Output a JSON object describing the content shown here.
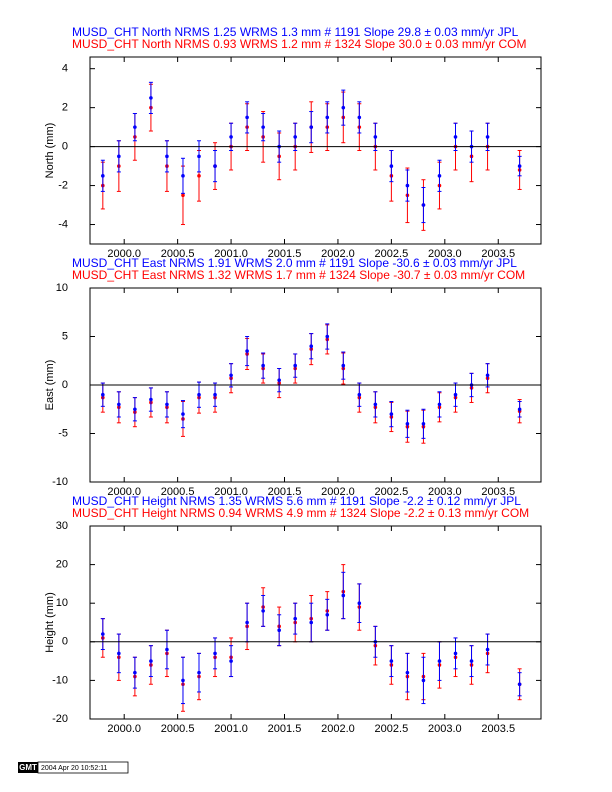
{
  "chart_data": [
    {
      "type": "scatter",
      "y_label": "North (mm)",
      "xlim": [
        1999.68,
        2003.9
      ],
      "ylim": [
        -5,
        4.6
      ],
      "xticks": [
        {
          "value": 2000,
          "label": "2000.0"
        },
        2000.5,
        {
          "value": 2001,
          "label": "2001.0"
        },
        2001.5,
        {
          "value": 2002,
          "label": "2002.0"
        },
        2002.5,
        {
          "value": 2003,
          "label": "2003.0"
        },
        2003.5
      ],
      "yticks": [
        -4,
        -2,
        0,
        2,
        4
      ],
      "x": [
        1999.8,
        1999.95,
        2000.1,
        2000.25,
        2000.4,
        2000.55,
        2000.7,
        2000.85,
        2001.0,
        2001.15,
        2001.3,
        2001.45,
        2001.6,
        2001.75,
        2001.9,
        2002.05,
        2002.2,
        2002.35,
        2002.5,
        2002.65,
        2002.8,
        2002.95,
        2003.1,
        2003.25,
        2003.4,
        2003.7
      ],
      "series": [
        {
          "name": "MUSD_CHT North NRMS 1.25 WRMS  1.3 mm # 1191 Slope   29.8 ±  0.03 mm/yr JPL",
          "color": "#0000ff",
          "values": [
            -1.5,
            -0.5,
            1.0,
            2.5,
            -0.5,
            -1.5,
            -0.5,
            -1.0,
            0.5,
            1.5,
            1.0,
            0.0,
            0.5,
            1.0,
            1.5,
            2.0,
            1.5,
            0.5,
            -1.0,
            -2.0,
            -3.0,
            -1.5,
            0.5,
            0.0,
            0.5,
            -1.0
          ],
          "errors": [
            0.8,
            0.8,
            0.7,
            0.8,
            0.8,
            0.9,
            0.8,
            0.8,
            0.7,
            0.8,
            0.7,
            0.8,
            0.7,
            0.8,
            0.8,
            0.9,
            0.8,
            0.7,
            0.8,
            0.8,
            0.9,
            0.8,
            0.7,
            0.8,
            0.7,
            0.5
          ]
        },
        {
          "name": "MUSD_CHT North NRMS 0.93 WRMS  1.2 mm # 1324 Slope   30.0 ±  0.03 mm/yr COM",
          "color": "#ff0000",
          "values": [
            -2.0,
            -1.0,
            0.5,
            2.0,
            -1.0,
            -2.5,
            -1.5,
            -1.0,
            0.0,
            1.0,
            0.5,
            -0.5,
            0.0,
            1.0,
            1.0,
            1.5,
            1.0,
            0.0,
            -1.5,
            -2.5,
            -3.0,
            -2.0,
            0.0,
            -0.5,
            0.0,
            -1.2
          ],
          "errors": [
            1.2,
            1.3,
            1.2,
            1.2,
            1.3,
            1.5,
            1.3,
            1.2,
            1.2,
            1.2,
            1.3,
            1.2,
            1.2,
            1.3,
            1.2,
            1.3,
            1.2,
            1.2,
            1.3,
            1.4,
            1.3,
            1.2,
            1.2,
            1.3,
            1.2,
            1.0
          ]
        }
      ]
    },
    {
      "type": "scatter",
      "y_label": "East (mm)",
      "xlim": [
        1999.68,
        2003.9
      ],
      "ylim": [
        -10,
        10
      ],
      "xticks": [
        {
          "value": 2000,
          "label": "2000.0"
        },
        2000.5,
        {
          "value": 2001,
          "label": "2001.0"
        },
        2001.5,
        {
          "value": 2002,
          "label": "2002.0"
        },
        2002.5,
        {
          "value": 2003,
          "label": "2003.0"
        },
        2003.5
      ],
      "yticks": [
        -10,
        -5,
        0,
        5,
        10
      ],
      "x": [
        1999.8,
        1999.95,
        2000.1,
        2000.25,
        2000.4,
        2000.55,
        2000.7,
        2000.85,
        2001.0,
        2001.15,
        2001.3,
        2001.45,
        2001.6,
        2001.75,
        2001.9,
        2002.05,
        2002.2,
        2002.35,
        2002.5,
        2002.65,
        2002.8,
        2002.95,
        2003.1,
        2003.25,
        2003.4,
        2003.7
      ],
      "series": [
        {
          "name": "MUSD_CHT East NRMS 1.91 WRMS  2.0 mm # 1191 Slope  -30.6 ±  0.03 mm/yr JPL",
          "color": "#0000ff",
          "values": [
            -1.0,
            -2.0,
            -2.5,
            -1.5,
            -2.0,
            -3.0,
            -1.0,
            -1.0,
            1.0,
            3.5,
            2.0,
            0.5,
            2.0,
            4.0,
            5.0,
            2.0,
            -1.0,
            -2.0,
            -3.0,
            -4.0,
            -4.0,
            -2.0,
            -1.0,
            0.0,
            1.0,
            -2.5
          ],
          "errors": [
            1.2,
            1.3,
            1.2,
            1.2,
            1.3,
            1.4,
            1.3,
            1.2,
            1.2,
            1.5,
            1.3,
            1.2,
            1.2,
            1.3,
            1.3,
            1.4,
            1.2,
            1.3,
            1.3,
            1.4,
            1.5,
            1.3,
            1.2,
            1.2,
            1.2,
            0.8
          ]
        },
        {
          "name": "MUSD_CHT East NRMS 1.32 WRMS  1.7 mm # 1324 Slope  -30.7 ±  0.03 mm/yr COM",
          "color": "#ff0000",
          "values": [
            -1.3,
            -2.3,
            -2.8,
            -1.8,
            -2.3,
            -3.5,
            -1.3,
            -1.3,
            0.7,
            3.2,
            1.7,
            0.2,
            1.7,
            3.7,
            4.7,
            1.7,
            -1.3,
            -2.3,
            -3.3,
            -4.3,
            -4.3,
            -2.3,
            -1.3,
            -0.3,
            0.7,
            -2.7
          ],
          "errors": [
            1.5,
            1.6,
            1.5,
            1.5,
            1.6,
            1.8,
            1.6,
            1.5,
            1.5,
            1.6,
            1.5,
            1.5,
            1.5,
            1.6,
            1.5,
            1.6,
            1.5,
            1.6,
            1.5,
            1.6,
            1.7,
            1.5,
            1.5,
            1.5,
            1.5,
            1.2
          ]
        }
      ]
    },
    {
      "type": "scatter",
      "y_label": "Height (mm)",
      "xlim": [
        1999.68,
        2003.9
      ],
      "ylim": [
        -20,
        30
      ],
      "xticks": [
        {
          "value": 2000,
          "label": "2000.0"
        },
        2000.5,
        {
          "value": 2001,
          "label": "2001.0"
        },
        2001.5,
        {
          "value": 2002,
          "label": "2002.0"
        },
        2002.5,
        {
          "value": 2003,
          "label": "2003.0"
        },
        2003.5
      ],
      "yticks": [
        -20,
        -10,
        0,
        10,
        20,
        30
      ],
      "x": [
        1999.8,
        1999.95,
        2000.1,
        2000.25,
        2000.4,
        2000.55,
        2000.7,
        2000.85,
        2001.0,
        2001.15,
        2001.3,
        2001.45,
        2001.6,
        2001.75,
        2001.9,
        2002.05,
        2002.2,
        2002.35,
        2002.5,
        2002.65,
        2002.8,
        2002.95,
        2003.1,
        2003.25,
        2003.4,
        2003.7
      ],
      "series": [
        {
          "name": "MUSD_CHT Height NRMS 1.35 WRMS  5.6 mm # 1191 Slope   -2.2 ±  0.12 mm/yr JPL",
          "color": "#0000ff",
          "values": [
            2,
            -3,
            -8,
            -5,
            -2,
            -10,
            -8,
            -3,
            -5,
            5,
            8,
            3,
            6,
            5,
            7,
            12,
            10,
            0,
            -5,
            -8,
            -10,
            -5,
            -3,
            -5,
            -2,
            -11
          ],
          "errors": [
            4,
            5,
            4,
            4,
            5,
            6,
            5,
            4,
            4,
            5,
            4,
            4,
            4,
            5,
            4,
            6,
            5,
            4,
            4,
            5,
            6,
            5,
            4,
            4,
            4,
            3
          ]
        },
        {
          "name": "MUSD_CHT Height NRMS 0.94 WRMS  4.9 mm # 1324 Slope   -2.2 ±  0.13 mm/yr COM",
          "color": "#ff0000",
          "values": [
            1,
            -4,
            -9,
            -6,
            -3,
            -11,
            -9,
            -4,
            -4,
            4,
            9,
            4,
            5,
            6,
            8,
            13,
            9,
            -1,
            -6,
            -9,
            -9,
            -6,
            -4,
            -6,
            -3,
            -11
          ],
          "errors": [
            5,
            6,
            5,
            5,
            6,
            7,
            6,
            5,
            5,
            6,
            5,
            5,
            5,
            6,
            5,
            7,
            6,
            5,
            5,
            6,
            6,
            6,
            5,
            5,
            5,
            4
          ]
        }
      ]
    }
  ],
  "footer": {
    "logo": "GMT",
    "timestamp": "2004 Apr 20 10:52:11"
  }
}
